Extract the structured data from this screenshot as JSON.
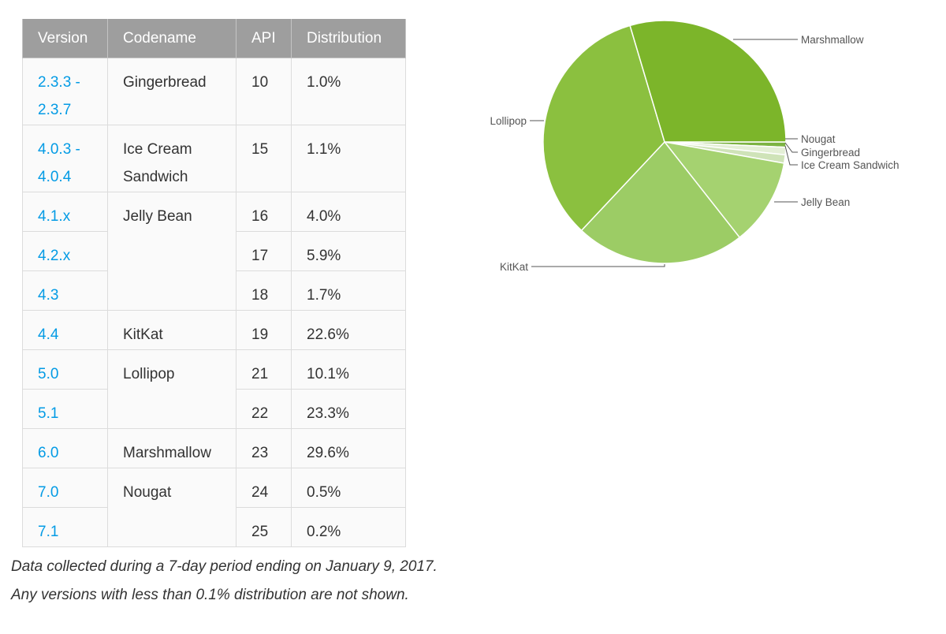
{
  "table": {
    "headers": [
      "Version",
      "Codename",
      "API",
      "Distribution"
    ],
    "rows": [
      {
        "version": [
          "2.3.3 -",
          "2.3.7"
        ],
        "codename": [
          "Gingerbread"
        ],
        "codename_rowspan": 1,
        "api": "10",
        "distribution": "1.0%"
      },
      {
        "version": [
          "4.0.3 -",
          "4.0.4"
        ],
        "codename": [
          "Ice Cream",
          "Sandwich"
        ],
        "codename_rowspan": 1,
        "api": "15",
        "distribution": "1.1%"
      },
      {
        "version": [
          "4.1.x"
        ],
        "codename": [
          "Jelly Bean"
        ],
        "codename_rowspan": 3,
        "api": "16",
        "distribution": "4.0%"
      },
      {
        "version": [
          "4.2.x"
        ],
        "api": "17",
        "distribution": "5.9%"
      },
      {
        "version": [
          "4.3"
        ],
        "api": "18",
        "distribution": "1.7%"
      },
      {
        "version": [
          "4.4"
        ],
        "codename": [
          "KitKat"
        ],
        "codename_rowspan": 1,
        "api": "19",
        "distribution": "22.6%"
      },
      {
        "version": [
          "5.0"
        ],
        "codename": [
          "Lollipop"
        ],
        "codename_rowspan": 2,
        "api": "21",
        "distribution": "10.1%"
      },
      {
        "version": [
          "5.1"
        ],
        "api": "22",
        "distribution": "23.3%"
      },
      {
        "version": [
          "6.0"
        ],
        "codename": [
          "Marshmallow"
        ],
        "codename_rowspan": 1,
        "api": "23",
        "distribution": "29.6%"
      },
      {
        "version": [
          "7.0"
        ],
        "codename": [
          "Nougat"
        ],
        "codename_rowspan": 2,
        "api": "24",
        "distribution": "0.5%"
      },
      {
        "version": [
          "7.1"
        ],
        "api": "25",
        "distribution": "0.2%"
      }
    ]
  },
  "captions": {
    "line1": "Data collected during a 7-day period ending on January 9, 2017.",
    "line2": "Any versions with less than 0.1% distribution are not shown."
  },
  "colors": {
    "header_bg": "#9e9e9e",
    "link": "#039be5",
    "slice_divider": "#ffffff",
    "leader_line": "#555555"
  },
  "chart_data": {
    "type": "pie",
    "start": "clockwise from 3 o'clock",
    "slices": [
      {
        "label": "Nougat",
        "value": 0.7,
        "color": "#7cb342"
      },
      {
        "label": "Gingerbread",
        "value": 1.0,
        "color": "#e4efd6"
      },
      {
        "label": "Ice Cream Sandwich",
        "value": 1.1,
        "color": "#cfe3b8"
      },
      {
        "label": "Jelly Bean",
        "value": 11.6,
        "color": "#a5d270"
      },
      {
        "label": "KitKat",
        "value": 22.6,
        "color": "#9ccc65"
      },
      {
        "label": "Lollipop",
        "value": 33.4,
        "color": "#8bc03f"
      },
      {
        "label": "Marshmallow",
        "value": 29.6,
        "color": "#7cb52a"
      }
    ]
  }
}
